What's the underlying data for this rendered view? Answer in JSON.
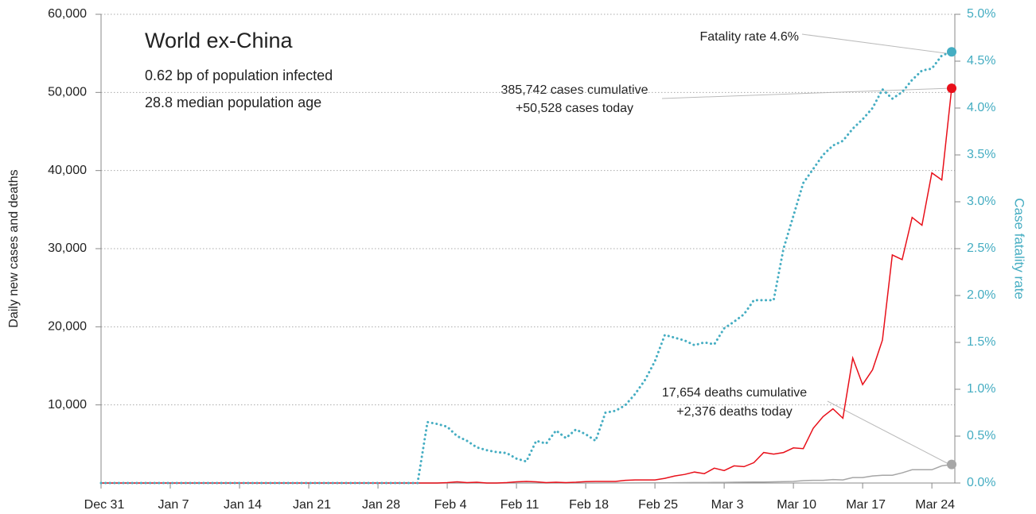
{
  "chart_data": {
    "type": "line",
    "title": "World ex-China",
    "subtitle_lines": [
      "0.62 bp of population infected",
      "28.8 median population age"
    ],
    "annotations": [
      "Fatality rate 4.6%",
      "385,742 cases cumulative",
      "+50,528 cases today",
      "17,654 deaths cumulative",
      "+2,376 deaths today"
    ],
    "y_label": "Daily new cases and deaths",
    "y2_label": "Case fatality rate",
    "grid": true,
    "categories": [
      "Dec 31",
      null,
      null,
      null,
      null,
      null,
      null,
      "Jan 7",
      null,
      null,
      null,
      null,
      null,
      null,
      "Jan 14",
      null,
      null,
      null,
      null,
      null,
      null,
      "Jan 21",
      null,
      null,
      null,
      null,
      null,
      null,
      "Jan 28",
      null,
      null,
      null,
      null,
      null,
      null,
      "Feb 4",
      null,
      null,
      null,
      null,
      null,
      null,
      "Feb 11",
      null,
      null,
      null,
      null,
      null,
      null,
      "Feb 18",
      null,
      null,
      null,
      null,
      null,
      null,
      "Feb 25",
      null,
      null,
      null,
      null,
      null,
      null,
      "Mar 3",
      null,
      null,
      null,
      null,
      null,
      null,
      "Mar 10",
      null,
      null,
      null,
      null,
      null,
      null,
      "Mar 17",
      null,
      null,
      null,
      null,
      null,
      null,
      "Mar 24",
      null,
      null
    ],
    "series": [
      {
        "color": "#e8101a",
        "values": [
          0,
          0,
          0,
          0,
          0,
          0,
          0,
          0,
          0,
          0,
          0,
          0,
          0,
          0,
          0,
          0,
          0,
          0,
          0,
          0,
          0,
          0,
          0,
          0,
          0,
          0,
          0,
          0,
          0,
          0,
          0,
          0,
          0,
          0,
          0,
          50,
          150,
          50,
          100,
          0,
          0,
          50,
          150,
          200,
          150,
          50,
          100,
          50,
          100,
          180,
          200,
          200,
          200,
          350,
          400,
          400,
          400,
          600,
          900,
          1100,
          1400,
          1200,
          1900,
          1600,
          2200,
          2100,
          2600,
          3900,
          3700,
          3900,
          4500,
          4400,
          7000,
          8500,
          9500,
          8300,
          16000,
          12600,
          14500,
          18300,
          29200,
          28600,
          34000,
          33000,
          39700,
          38800,
          50528
        ]
      },
      {
        "color": "#a6a6a6",
        "values": [
          0,
          0,
          0,
          0,
          0,
          0,
          0,
          0,
          0,
          0,
          0,
          0,
          0,
          0,
          0,
          0,
          0,
          0,
          0,
          0,
          0,
          0,
          0,
          0,
          0,
          0,
          0,
          0,
          0,
          0,
          0,
          0,
          0,
          0,
          0,
          1,
          0,
          1,
          0,
          1,
          0,
          1,
          2,
          1,
          2,
          1,
          3,
          2,
          3,
          4,
          5,
          8,
          10,
          12,
          15,
          18,
          20,
          30,
          40,
          50,
          60,
          60,
          70,
          80,
          100,
          110,
          120,
          130,
          150,
          170,
          200,
          300,
          350,
          350,
          450,
          400,
          700,
          700,
          900,
          1000,
          1000,
          1300,
          1700,
          1700,
          1700,
          2200,
          2376
        ]
      },
      {
        "color": "#45adc2",
        "axis": "y2",
        "line_style": "dotted",
        "values": [
          0,
          0,
          0,
          0,
          0,
          0,
          0,
          0,
          0,
          0,
          0,
          0,
          0,
          0,
          0,
          0,
          0,
          0,
          0,
          0,
          0,
          0,
          0,
          0,
          0,
          0,
          0,
          0,
          0,
          0,
          0,
          0,
          0,
          0.65,
          0.63,
          0.6,
          0.5,
          0.45,
          0.38,
          0.35,
          0.33,
          0.32,
          0.26,
          0.23,
          0.45,
          0.42,
          0.56,
          0.48,
          0.57,
          0.52,
          0.45,
          0.75,
          0.77,
          0.83,
          0.95,
          1.1,
          1.3,
          1.58,
          1.55,
          1.52,
          1.47,
          1.5,
          1.48,
          1.65,
          1.72,
          1.8,
          1.95,
          1.95,
          1.95,
          2.5,
          2.85,
          3.2,
          3.35,
          3.5,
          3.6,
          3.65,
          3.78,
          3.88,
          4.0,
          4.2,
          4.1,
          4.17,
          4.3,
          4.4,
          4.42,
          4.56,
          4.6
        ]
      }
    ],
    "ylim": [
      0,
      60000
    ],
    "yticks": [
      {
        "value": 10000,
        "label": "10,000"
      },
      {
        "value": 20000,
        "label": "20,000"
      },
      {
        "value": 30000,
        "label": "30,000"
      },
      {
        "value": 40000,
        "label": "40,000"
      },
      {
        "value": 50000,
        "label": "50,000"
      },
      {
        "value": 60000,
        "label": "60,000"
      }
    ],
    "y2lim": [
      0,
      5
    ],
    "y2ticks": [
      {
        "value": 0,
        "label": "0.0%"
      },
      {
        "value": 0.5,
        "label": "0.5%"
      },
      {
        "value": 1,
        "label": "1.0%"
      },
      {
        "value": 1.5,
        "label": "1.5%"
      },
      {
        "value": 2,
        "label": "2.0%"
      },
      {
        "value": 2.5,
        "label": "2.5%"
      },
      {
        "value": 3,
        "label": "3.0%"
      },
      {
        "value": 3.5,
        "label": "3.5%"
      },
      {
        "value": 4,
        "label": "4.0%"
      },
      {
        "value": 4.5,
        "label": "4.5%"
      },
      {
        "value": 5,
        "label": "5.0%"
      }
    ]
  }
}
